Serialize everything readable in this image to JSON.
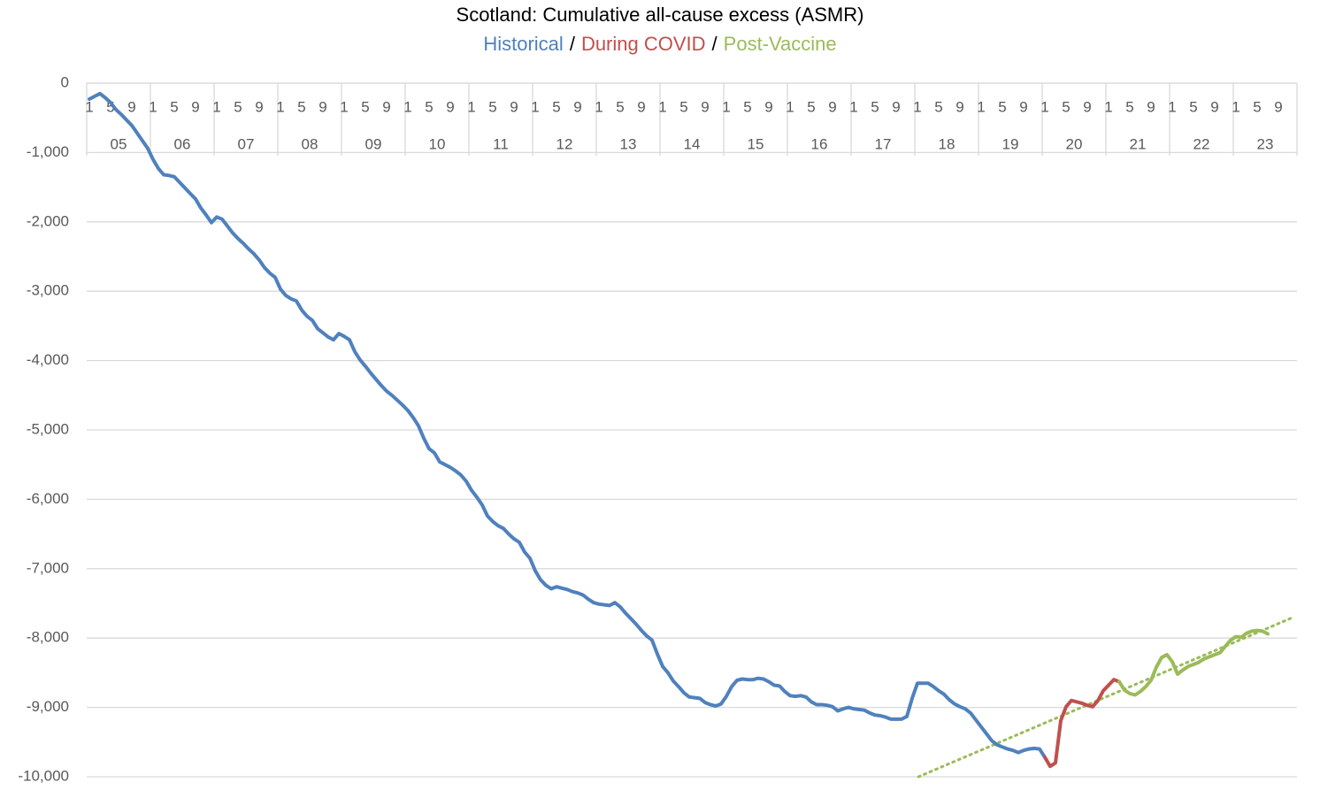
{
  "chart_data": {
    "type": "line",
    "title": "Scotland: Cumulative all-cause excess (ASMR)",
    "legend_separator": "/",
    "year_groups": [
      "05",
      "06",
      "07",
      "08",
      "09",
      "10",
      "11",
      "12",
      "13",
      "14",
      "15",
      "16",
      "17",
      "18",
      "19",
      "20",
      "21",
      "22",
      "23"
    ],
    "categories": [
      "1",
      null,
      null,
      null,
      "5",
      null,
      null,
      null,
      "9",
      null,
      null,
      null,
      "1",
      null,
      null,
      null,
      "5",
      null,
      null,
      null,
      "9",
      null,
      null,
      null,
      "1",
      null,
      null,
      null,
      "5",
      null,
      null,
      null,
      "9",
      null,
      null,
      null,
      "1",
      null,
      null,
      null,
      "5",
      null,
      null,
      null,
      "9",
      null,
      null,
      null,
      "1",
      null,
      null,
      null,
      "5",
      null,
      null,
      null,
      "9",
      null,
      null,
      null,
      "1",
      null,
      null,
      null,
      "5",
      null,
      null,
      null,
      "9",
      null,
      null,
      null,
      "1",
      null,
      null,
      null,
      "5",
      null,
      null,
      null,
      "9",
      null,
      null,
      null,
      "1",
      null,
      null,
      null,
      "5",
      null,
      null,
      null,
      "9",
      null,
      null,
      null,
      "1",
      null,
      null,
      null,
      "5",
      null,
      null,
      null,
      "9",
      null,
      null,
      null,
      "1",
      null,
      null,
      null,
      "5",
      null,
      null,
      null,
      "9",
      null,
      null,
      null,
      "1",
      null,
      null,
      null,
      "5",
      null,
      null,
      null,
      "9",
      null,
      null,
      null,
      "1",
      null,
      null,
      null,
      "5",
      null,
      null,
      null,
      "9",
      null,
      null,
      null,
      "1",
      null,
      null,
      null,
      "5",
      null,
      null,
      null,
      "9",
      null,
      null,
      null,
      "1",
      null,
      null,
      null,
      "5",
      null,
      null,
      null,
      "9",
      null,
      null,
      null,
      "1",
      null,
      null,
      null,
      "5",
      null,
      null,
      null,
      "9",
      null,
      null,
      null,
      "1",
      null,
      null,
      null,
      "5",
      null,
      null,
      null,
      "9",
      null,
      null,
      null,
      "1",
      null,
      null,
      null,
      "5",
      null,
      null,
      null,
      "9",
      null,
      null,
      null,
      "1",
      null,
      null,
      null,
      "5",
      null,
      null,
      null,
      "9",
      null,
      null,
      null,
      "1",
      null,
      null,
      null,
      "5",
      null,
      null,
      null,
      "9",
      null,
      null,
      null
    ],
    "series": [
      {
        "name": "Historical",
        "color": "#4f81bd",
        "values": [
          -230,
          -190,
          -150,
          -210,
          -280,
          -380,
          -450,
          -530,
          -610,
          -720,
          -830,
          -940,
          -1100,
          -1230,
          -1320,
          -1330,
          -1350,
          -1430,
          -1510,
          -1590,
          -1670,
          -1800,
          -1900,
          -2010,
          -1930,
          -1960,
          -2060,
          -2160,
          -2240,
          -2310,
          -2390,
          -2460,
          -2550,
          -2660,
          -2740,
          -2800,
          -2970,
          -3060,
          -3110,
          -3140,
          -3270,
          -3360,
          -3420,
          -3540,
          -3600,
          -3660,
          -3700,
          -3610,
          -3650,
          -3700,
          -3870,
          -3990,
          -4080,
          -4180,
          -4270,
          -4360,
          -4440,
          -4500,
          -4570,
          -4640,
          -4720,
          -4820,
          -4940,
          -5120,
          -5270,
          -5330,
          -5460,
          -5500,
          -5540,
          -5590,
          -5650,
          -5740,
          -5870,
          -5970,
          -6080,
          -6240,
          -6320,
          -6380,
          -6420,
          -6500,
          -6570,
          -6620,
          -6760,
          -6850,
          -7030,
          -7160,
          -7240,
          -7290,
          -7260,
          -7280,
          -7300,
          -7330,
          -7350,
          -7380,
          -7440,
          -7490,
          -7510,
          -7520,
          -7530,
          -7490,
          -7550,
          -7640,
          -7720,
          -7800,
          -7890,
          -7970,
          -8030,
          -8230,
          -8410,
          -8500,
          -8620,
          -8700,
          -8790,
          -8850,
          -8860,
          -8870,
          -8930,
          -8960,
          -8980,
          -8950,
          -8840,
          -8700,
          -8610,
          -8590,
          -8600,
          -8600,
          -8580,
          -8590,
          -8630,
          -8680,
          -8690,
          -8770,
          -8830,
          -8840,
          -8830,
          -8850,
          -8920,
          -8960,
          -8960,
          -8970,
          -8990,
          -9050,
          -9020,
          -9000,
          -9020,
          -9030,
          -9040,
          -9080,
          -9110,
          -9120,
          -9140,
          -9170,
          -9170,
          -9170,
          -9130,
          -8870,
          -8650,
          -8650,
          -8650,
          -8700,
          -8760,
          -8810,
          -8890,
          -8950,
          -8990,
          -9020,
          -9080,
          -9180,
          -9280,
          -9380,
          -9480,
          -9540,
          -9570,
          -9600,
          -9620,
          -9650,
          -9620,
          -9600,
          -9590,
          -9600,
          -9720,
          null,
          null,
          null,
          null,
          null,
          null,
          null,
          null,
          null,
          null,
          null,
          null,
          null,
          null,
          null,
          null,
          null,
          null,
          null,
          null,
          null,
          null,
          null,
          null,
          null,
          null,
          null,
          null,
          null,
          null,
          null,
          null,
          null,
          null,
          null,
          null,
          null,
          null,
          null,
          null,
          null,
          null,
          null,
          null,
          null,
          null,
          null
        ]
      },
      {
        "name": "During COVID",
        "color": "#c0504d",
        "values": [
          null,
          null,
          null,
          null,
          null,
          null,
          null,
          null,
          null,
          null,
          null,
          null,
          null,
          null,
          null,
          null,
          null,
          null,
          null,
          null,
          null,
          null,
          null,
          null,
          null,
          null,
          null,
          null,
          null,
          null,
          null,
          null,
          null,
          null,
          null,
          null,
          null,
          null,
          null,
          null,
          null,
          null,
          null,
          null,
          null,
          null,
          null,
          null,
          null,
          null,
          null,
          null,
          null,
          null,
          null,
          null,
          null,
          null,
          null,
          null,
          null,
          null,
          null,
          null,
          null,
          null,
          null,
          null,
          null,
          null,
          null,
          null,
          null,
          null,
          null,
          null,
          null,
          null,
          null,
          null,
          null,
          null,
          null,
          null,
          null,
          null,
          null,
          null,
          null,
          null,
          null,
          null,
          null,
          null,
          null,
          null,
          null,
          null,
          null,
          null,
          null,
          null,
          null,
          null,
          null,
          null,
          null,
          null,
          null,
          null,
          null,
          null,
          null,
          null,
          null,
          null,
          null,
          null,
          null,
          null,
          null,
          null,
          null,
          null,
          null,
          null,
          null,
          null,
          null,
          null,
          null,
          null,
          null,
          null,
          null,
          null,
          null,
          null,
          null,
          null,
          null,
          null,
          null,
          null,
          null,
          null,
          null,
          null,
          null,
          null,
          null,
          null,
          null,
          null,
          null,
          null,
          null,
          null,
          null,
          null,
          null,
          null,
          null,
          null,
          null,
          null,
          null,
          null,
          null,
          null,
          null,
          null,
          null,
          null,
          null,
          null,
          null,
          null,
          null,
          null,
          -9720,
          -9850,
          -9800,
          -9190,
          -8990,
          -8900,
          -8920,
          -8940,
          -8970,
          -8990,
          -8900,
          -8760,
          -8680,
          -8600,
          -8630,
          null,
          null,
          null,
          null,
          null,
          null,
          null,
          null,
          null,
          null,
          null,
          null,
          null,
          null,
          null,
          null,
          null,
          null,
          null,
          null,
          null,
          null,
          null,
          null,
          null,
          null,
          null,
          null,
          null,
          null,
          null,
          null,
          null
        ]
      },
      {
        "name": "Post-Vaccine",
        "color": "#9bbb59",
        "values": [
          null,
          null,
          null,
          null,
          null,
          null,
          null,
          null,
          null,
          null,
          null,
          null,
          null,
          null,
          null,
          null,
          null,
          null,
          null,
          null,
          null,
          null,
          null,
          null,
          null,
          null,
          null,
          null,
          null,
          null,
          null,
          null,
          null,
          null,
          null,
          null,
          null,
          null,
          null,
          null,
          null,
          null,
          null,
          null,
          null,
          null,
          null,
          null,
          null,
          null,
          null,
          null,
          null,
          null,
          null,
          null,
          null,
          null,
          null,
          null,
          null,
          null,
          null,
          null,
          null,
          null,
          null,
          null,
          null,
          null,
          null,
          null,
          null,
          null,
          null,
          null,
          null,
          null,
          null,
          null,
          null,
          null,
          null,
          null,
          null,
          null,
          null,
          null,
          null,
          null,
          null,
          null,
          null,
          null,
          null,
          null,
          null,
          null,
          null,
          null,
          null,
          null,
          null,
          null,
          null,
          null,
          null,
          null,
          null,
          null,
          null,
          null,
          null,
          null,
          null,
          null,
          null,
          null,
          null,
          null,
          null,
          null,
          null,
          null,
          null,
          null,
          null,
          null,
          null,
          null,
          null,
          null,
          null,
          null,
          null,
          null,
          null,
          null,
          null,
          null,
          null,
          null,
          null,
          null,
          null,
          null,
          null,
          null,
          null,
          null,
          null,
          null,
          null,
          null,
          null,
          null,
          null,
          null,
          null,
          null,
          null,
          null,
          null,
          null,
          null,
          null,
          null,
          null,
          null,
          null,
          null,
          null,
          null,
          null,
          null,
          null,
          null,
          null,
          null,
          null,
          null,
          null,
          null,
          null,
          null,
          null,
          null,
          null,
          null,
          null,
          null,
          null,
          null,
          null,
          -8630,
          -8750,
          -8800,
          -8820,
          -8770,
          -8700,
          -8610,
          -8420,
          -8280,
          -8240,
          -8340,
          -8520,
          -8460,
          -8410,
          -8380,
          -8350,
          -8300,
          -8270,
          -8240,
          -8210,
          -8120,
          -8030,
          -7980,
          -7990,
          -7930,
          -7900,
          -7890,
          -7900,
          -7940,
          null,
          null,
          null,
          null,
          null
        ]
      }
    ],
    "trendline": {
      "color": "#9bbb59",
      "style": "dotted",
      "x_index": [
        156.2,
        226.8
      ],
      "values": [
        -10000,
        -7700
      ]
    },
    "ylim": [
      -10000,
      0
    ],
    "yticks": [
      0,
      {
        "value": -1000,
        "label": "-1,000"
      },
      {
        "value": -2000,
        "label": "-2,000"
      },
      {
        "value": -3000,
        "label": "-3,000"
      },
      {
        "value": -4000,
        "label": "-4,000"
      },
      {
        "value": -5000,
        "label": "-5,000"
      },
      {
        "value": -6000,
        "label": "-6,000"
      },
      {
        "value": -7000,
        "label": "-7,000"
      },
      {
        "value": -8000,
        "label": "-8,000"
      },
      {
        "value": -9000,
        "label": "-9,000"
      },
      {
        "value": -10000,
        "label": "-10,000"
      }
    ],
    "grid": true
  }
}
